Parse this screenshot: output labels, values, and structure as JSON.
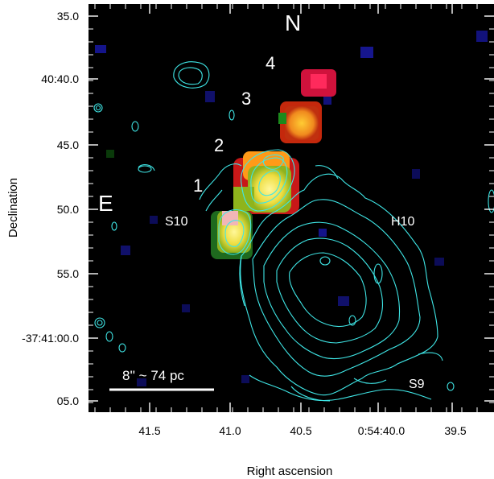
{
  "figure": {
    "xlabel": "Right ascension",
    "ylabel": "Declination",
    "x_ticks": [
      "41.5",
      "41.0",
      "40.5",
      "0:54:40.0",
      "39.5"
    ],
    "y_ticks": [
      "35.0",
      "40:40.0",
      "45.0",
      "50.0",
      "55.0",
      "-37:41:00.0",
      "05.0"
    ],
    "compass": {
      "north": "N",
      "east": "E"
    },
    "knots": [
      "1",
      "2",
      "3",
      "4"
    ],
    "regions": {
      "s10": "S10",
      "h10": "H10",
      "s9": "S9"
    },
    "scalebar": "8'' ~ 74 pc",
    "colors": {
      "background": "#000000",
      "contour": "#3fe6e6",
      "annotation": "#ffffff",
      "red_knot": "#e81c1c",
      "yellow_knot": "#f2e24a",
      "orange_knot": "#f08a1e",
      "noise_blue": "#10106a"
    }
  }
}
